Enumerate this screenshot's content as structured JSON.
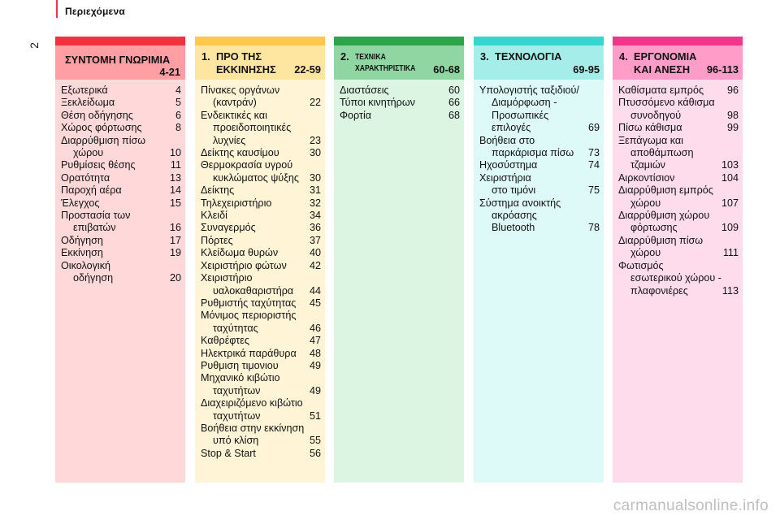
{
  "header": {
    "title": "Περιεχόμενα",
    "page_number": "2"
  },
  "colors": {
    "accent": "#e8364a",
    "col0": {
      "strip": "#f0323f",
      "head": "#ff9fa3",
      "body": "#ffd9da"
    },
    "col1": {
      "strip": "#ffc84a",
      "head": "#ffe6a0",
      "body": "#fff4d6"
    },
    "col2": {
      "strip": "#2da34a",
      "head": "#8fd6a3",
      "body": "#dcf5e2"
    },
    "col3": {
      "strip": "#35d6cf",
      "head": "#a4ede8",
      "body": "#ddfaf8"
    },
    "col4": {
      "strip": "#f0358a",
      "head": "#ff9dc8",
      "body": "#ffdcec"
    }
  },
  "sections": [
    {
      "title_line1": "ΣΥΝΤΟΜΗ ΓΝΩΡΙΜΙΑ",
      "title_line2": "4-21",
      "entries": [
        {
          "label": "Εξωτερικά",
          "page": "4"
        },
        {
          "label": "Ξεκλείδωμα",
          "page": "5"
        },
        {
          "label": "Θέση οδήγησης",
          "page": "6"
        },
        {
          "label": "Χώρος φόρτωσης",
          "page": "8"
        },
        {
          "label": "Διαρρύθμιση πίσω",
          "label2": "χώρου",
          "page": "10"
        },
        {
          "label": "Ρυθμίσεις θέσης",
          "page": "11"
        },
        {
          "label": "Ορατότητα",
          "page": "13"
        },
        {
          "label": "Παροχή αέρα",
          "page": "14"
        },
        {
          "label": "Έλεγχος",
          "page": "15"
        },
        {
          "label": "Προστασία των",
          "label2": "επιβατών",
          "page": "16"
        },
        {
          "label": "Οδήγηση",
          "page": "17"
        },
        {
          "label": "Εκκίνηση",
          "page": "19"
        },
        {
          "label": "Οικολογική",
          "label2": "οδήγηση",
          "page": "20"
        }
      ]
    },
    {
      "number": "1.",
      "title_line1": "ΠΡΟ ΤΗΣ",
      "title_line2": "ΕΚΚΙΝΗΣΗΣ",
      "pages": "22-59",
      "entries": [
        {
          "label": "Πίνακες οργάνων",
          "label2": "(καντράν)",
          "page": "22"
        },
        {
          "label": "Ενδεικτικές και",
          "label2": "προειδοποιητικές",
          "label3": "λυχνίες",
          "page": "23"
        },
        {
          "label": "Δείκτης καυσίμου",
          "page": "30"
        },
        {
          "label": "Θερμοκρασία υγρού",
          "label2": "κυκλώματος ψύξης",
          "page": "30"
        },
        {
          "label": "Δείκτης",
          "page": "31"
        },
        {
          "label": "Τηλεχειριστήριο",
          "page": "32"
        },
        {
          "label": "Κλειδί",
          "page": "34"
        },
        {
          "label": "Συναγερμός",
          "page": "36"
        },
        {
          "label": "Πόρτες",
          "page": "37"
        },
        {
          "label": "Κλείδωμα θυρών",
          "page": "40"
        },
        {
          "label": "Χειριστήριο φώτων",
          "page": "42"
        },
        {
          "label": "Χειριστήριο",
          "label2": "υαλοκαθαριστήρα",
          "page": "44"
        },
        {
          "label": "Ρυθμιστής ταχύτητας",
          "page": "45"
        },
        {
          "label": "Μόνιμος περιοριστής",
          "label2": "ταχύτητας",
          "page": "46"
        },
        {
          "label": "Καθρέφτες",
          "page": "47"
        },
        {
          "label": "Ηλεκτρικά παράθυρα",
          "page": "48"
        },
        {
          "label": "Ρυθμιση τιμονιου",
          "page": "49"
        },
        {
          "label": "Μηχανικό κιβώτιο",
          "label2": "ταχυτήτων",
          "page": "49"
        },
        {
          "label": "Διαχειριζόμενο κιβώτιο",
          "label2": "ταχυτήτων",
          "page": "51"
        },
        {
          "label": "Βοήθεια στην εκκίνηση",
          "label2": "υπό κλίση",
          "page": "55"
        },
        {
          "label": "Stop & Start",
          "page": "56"
        }
      ]
    },
    {
      "number": "2.",
      "title_line1": "ΤΕΧΝΙΚΑ",
      "title_line2": "ΧΑΡΑΚΤΗΡΙΣΤΙΚΑ",
      "pages": "60-68",
      "entries": [
        {
          "label": "Διαστάσεις",
          "page": "60"
        },
        {
          "label": "Τύποι κινητήρων",
          "page": "66"
        },
        {
          "label": "Φορτία",
          "page": "68"
        }
      ]
    },
    {
      "number": "3.",
      "title_line1": "ΤΕΧΝΟΛΟΓΙΑ",
      "pages": "69-95",
      "entries": [
        {
          "label": "Υπολογιστής ταξιδιού/",
          "label2": "Διαμόρφωση -",
          "label3": "Προσωπικές",
          "label4": "επιλογές",
          "page": "69"
        },
        {
          "label": "Βοήθεια στο",
          "label2": "παρκάρισμα πίσω",
          "page": "73"
        },
        {
          "label": "Ηχοσύστημα",
          "page": "74"
        },
        {
          "label": "Χειριστήρια",
          "label2": "στο τιμόνι",
          "page": "75"
        },
        {
          "label": "Σύστημα ανοικτής",
          "label2": "ακρόασης",
          "label3": "Bluetooth",
          "page": "78"
        }
      ]
    },
    {
      "number": "4.",
      "title_line1": "ΕΡΓΟΝΟΜΙΑ",
      "title_line2": "ΚΑΙ ΑΝΕΣΗ",
      "pages": "96-113",
      "entries": [
        {
          "label": "Καθίσματα εμπρός",
          "page": "96"
        },
        {
          "label": "Πτυσσόμενο κάθισμα",
          "label2": "συνοδηγού",
          "page": "98"
        },
        {
          "label": "Πίσω κάθισμα",
          "page": "99"
        },
        {
          "label": "Ξεπάγωμα και",
          "label2": "αποθάμπωση",
          "label3": "τζαμιών",
          "page": "103"
        },
        {
          "label": "Αιρκοντίσιον",
          "page": "104"
        },
        {
          "label": "Διαρρύθμιση εμπρός",
          "label2": "χώρου",
          "page": "107"
        },
        {
          "label": "Διαρρύθμιση χώρου",
          "label2": "φόρτωσης",
          "page": "109"
        },
        {
          "label": "Διαρρύθμιση πίσω",
          "label2": "χώρου",
          "page": "111"
        },
        {
          "label": "Φωτισμός",
          "label2": "εσωτερικού χώρου -",
          "label3": "πλαφονιέρες",
          "page": "113"
        }
      ]
    }
  ],
  "watermark": "carmanualsonline.info"
}
